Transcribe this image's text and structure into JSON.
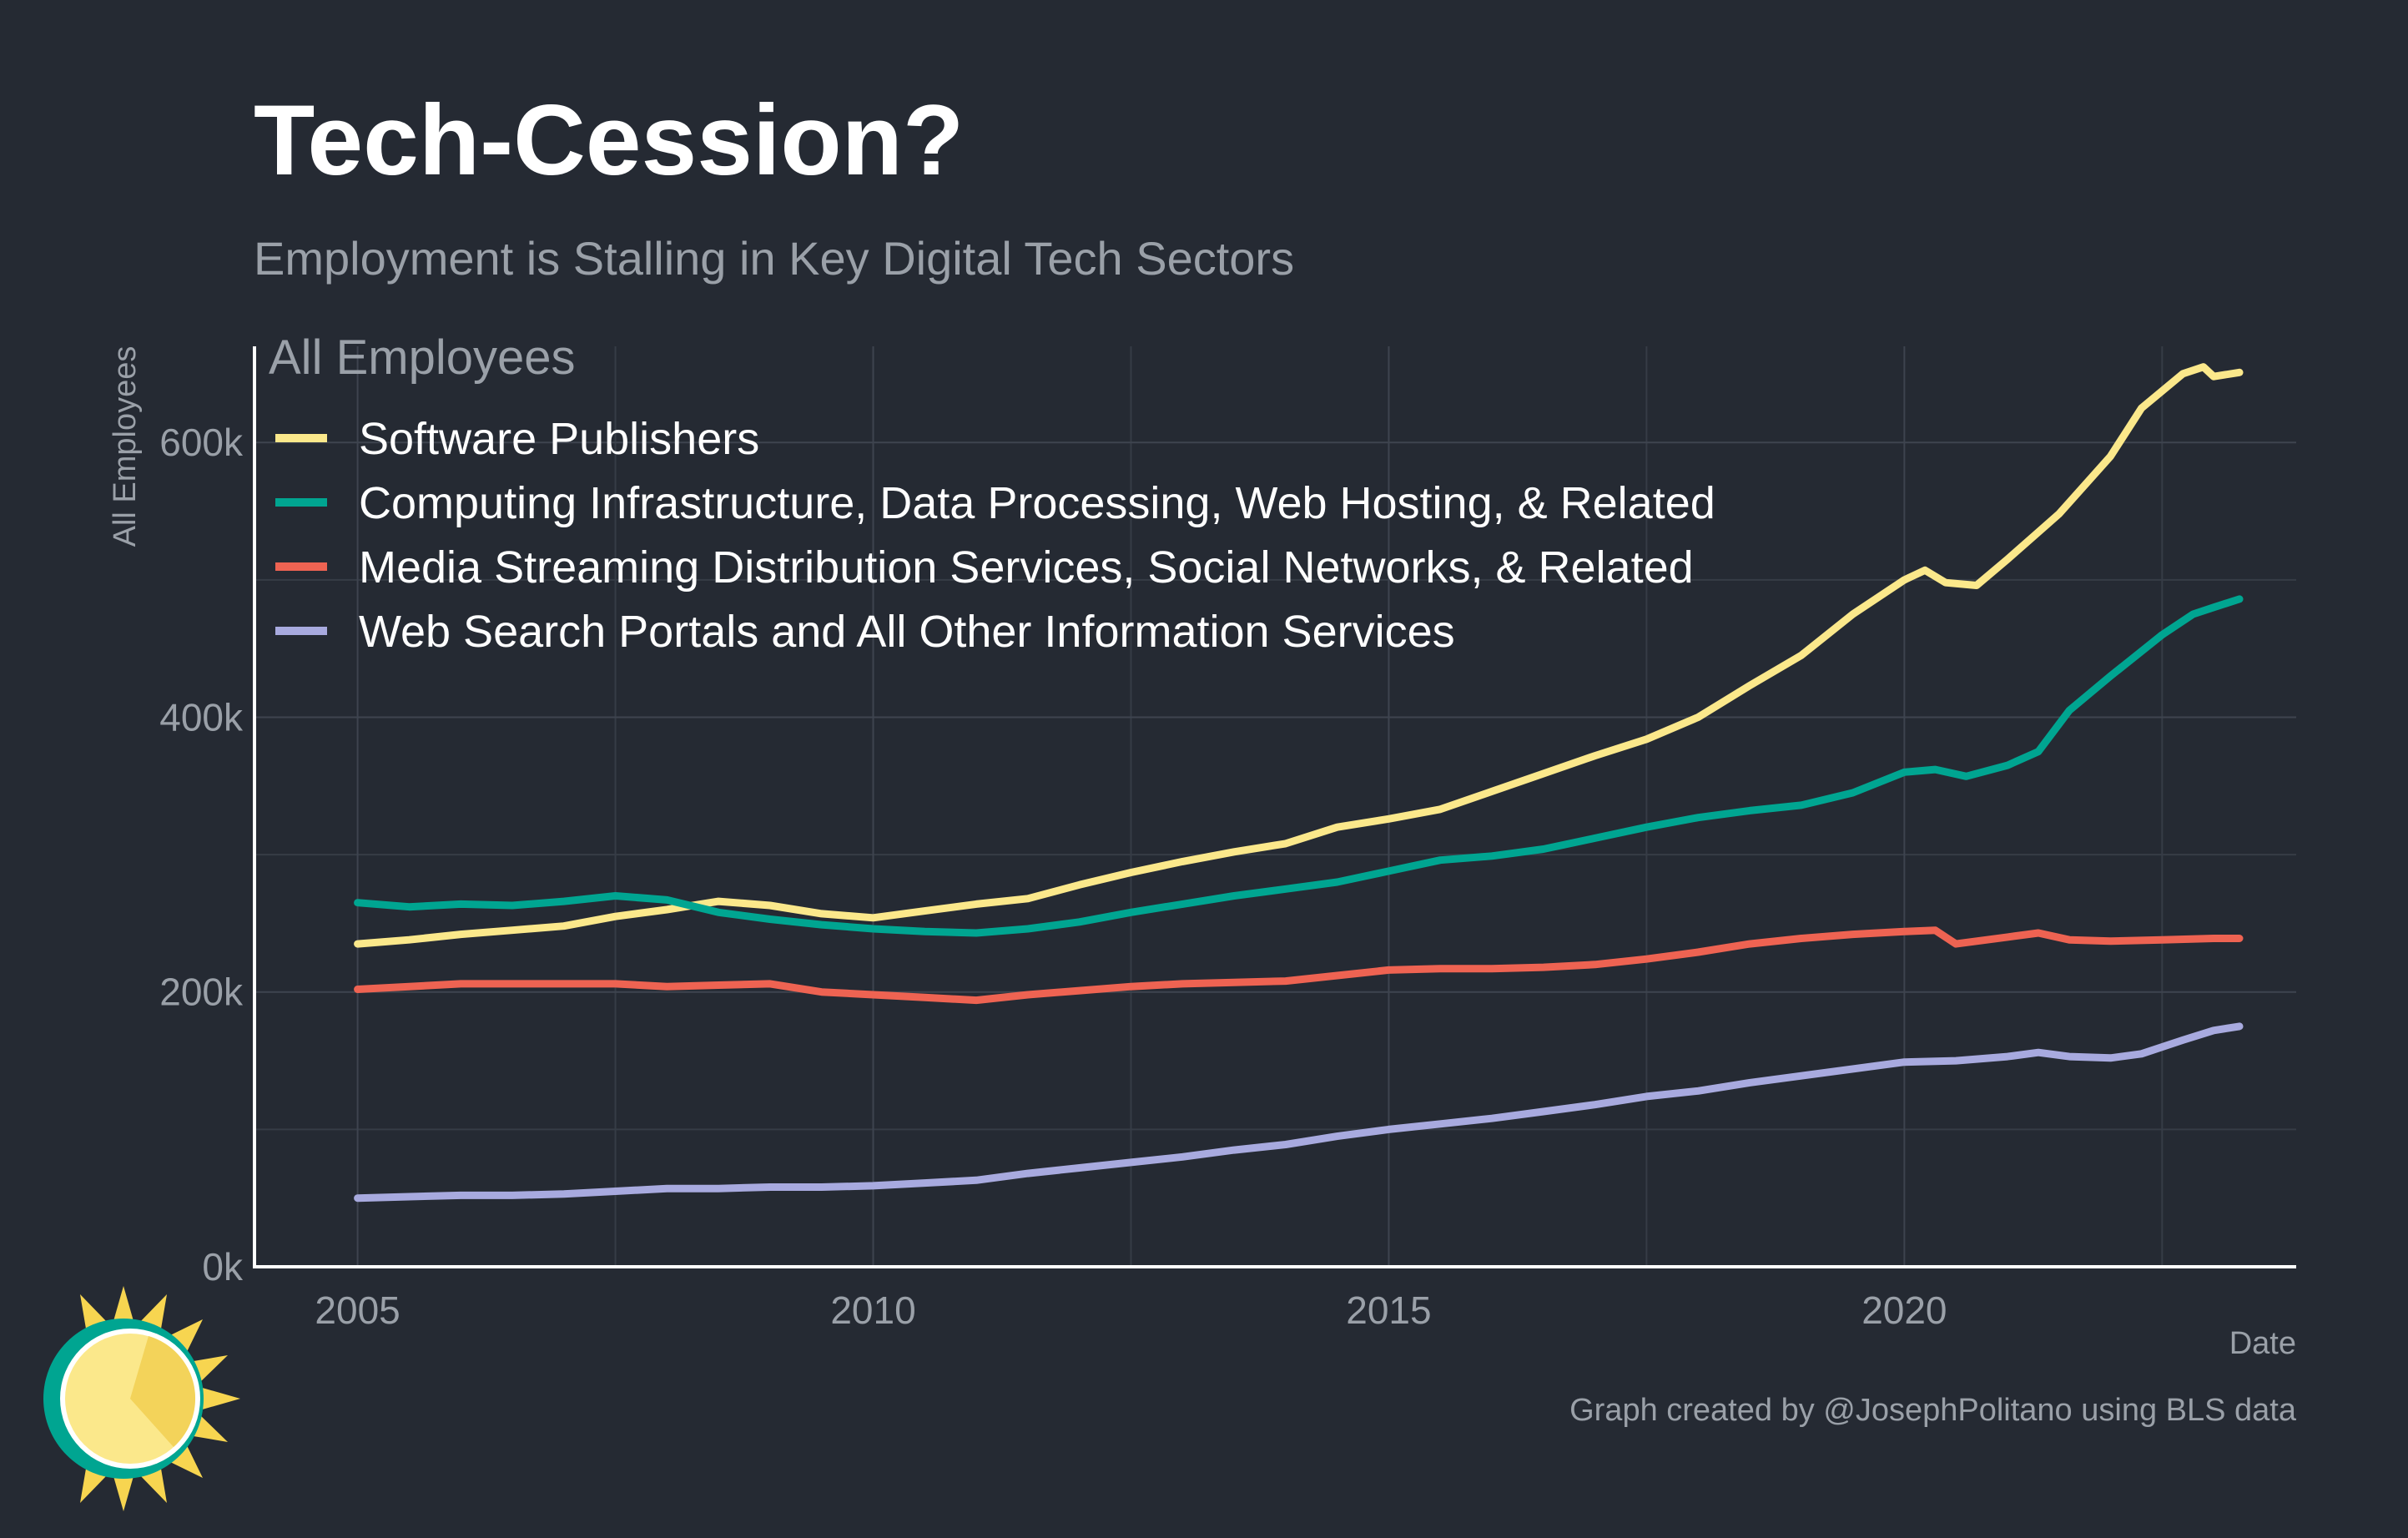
{
  "header": {
    "title": "Tech-Cession?",
    "subtitle": "Employment is Stalling in Key Digital Tech Sectors"
  },
  "footer": {
    "x_axis_title": "Date",
    "caption": "Graph created by @JosephPolitano using BLS data"
  },
  "chart_data": {
    "type": "line",
    "title": "Tech-Cession?",
    "subtitle": "Employment is Stalling in Key Digital Tech Sectors",
    "panel_label": "All Employees",
    "xlabel": "Date",
    "ylabel": "All Employees",
    "xlim": [
      2004.0,
      2023.8
    ],
    "ylim": [
      0,
      670000
    ],
    "x_ticks": [
      2005,
      2010,
      2015,
      2020
    ],
    "x_tick_labels": [
      "2005",
      "2010",
      "2015",
      "2020"
    ],
    "y_ticks": [
      0,
      200000,
      400000,
      600000
    ],
    "y_tick_labels": [
      "0k",
      "200k",
      "400k",
      "600k"
    ],
    "grid": true,
    "legend_position": "top-left",
    "series": [
      {
        "name": "Software Publishers",
        "color": "#fbe88b",
        "points": [
          [
            2005,
            235000
          ],
          [
            2005.5,
            238000
          ],
          [
            2006,
            242000
          ],
          [
            2006.5,
            245000
          ],
          [
            2007,
            248000
          ],
          [
            2007.5,
            255000
          ],
          [
            2008,
            260000
          ],
          [
            2008.5,
            266000
          ],
          [
            2009,
            263000
          ],
          [
            2009.5,
            257000
          ],
          [
            2010,
            254000
          ],
          [
            2010.5,
            259000
          ],
          [
            2011,
            264000
          ],
          [
            2011.5,
            268000
          ],
          [
            2012,
            278000
          ],
          [
            2012.5,
            287000
          ],
          [
            2013,
            295000
          ],
          [
            2013.5,
            302000
          ],
          [
            2014,
            308000
          ],
          [
            2014.5,
            320000
          ],
          [
            2015,
            326000
          ],
          [
            2015.5,
            333000
          ],
          [
            2016,
            346000
          ],
          [
            2016.5,
            359000
          ],
          [
            2017,
            372000
          ],
          [
            2017.5,
            384000
          ],
          [
            2018,
            400000
          ],
          [
            2018.5,
            423000
          ],
          [
            2019,
            445000
          ],
          [
            2019.5,
            475000
          ],
          [
            2020,
            500000
          ],
          [
            2020.2,
            507000
          ],
          [
            2020.4,
            498000
          ],
          [
            2020.7,
            496000
          ],
          [
            2021,
            515000
          ],
          [
            2021.5,
            548000
          ],
          [
            2022,
            590000
          ],
          [
            2022.3,
            625000
          ],
          [
            2022.7,
            650000
          ],
          [
            2022.9,
            655000
          ],
          [
            2023,
            648000
          ],
          [
            2023.25,
            651000
          ]
        ]
      },
      {
        "name": "Computing Infrastructure, Data Processing, Web Hosting, & Related",
        "color": "#00a591",
        "points": [
          [
            2005,
            265000
          ],
          [
            2005.5,
            262000
          ],
          [
            2006,
            264000
          ],
          [
            2006.5,
            263000
          ],
          [
            2007,
            266000
          ],
          [
            2007.5,
            270000
          ],
          [
            2008,
            267000
          ],
          [
            2008.5,
            258000
          ],
          [
            2009,
            253000
          ],
          [
            2009.5,
            249000
          ],
          [
            2010,
            246000
          ],
          [
            2010.5,
            244000
          ],
          [
            2011,
            243000
          ],
          [
            2011.5,
            246000
          ],
          [
            2012,
            251000
          ],
          [
            2012.5,
            258000
          ],
          [
            2013,
            264000
          ],
          [
            2013.5,
            270000
          ],
          [
            2014,
            275000
          ],
          [
            2014.5,
            280000
          ],
          [
            2015,
            288000
          ],
          [
            2015.5,
            296000
          ],
          [
            2016,
            299000
          ],
          [
            2016.5,
            304000
          ],
          [
            2017,
            312000
          ],
          [
            2017.5,
            320000
          ],
          [
            2018,
            327000
          ],
          [
            2018.5,
            332000
          ],
          [
            2019,
            336000
          ],
          [
            2019.5,
            345000
          ],
          [
            2020,
            360000
          ],
          [
            2020.3,
            362000
          ],
          [
            2020.6,
            357000
          ],
          [
            2021,
            365000
          ],
          [
            2021.3,
            375000
          ],
          [
            2021.6,
            405000
          ],
          [
            2022,
            430000
          ],
          [
            2022.5,
            460000
          ],
          [
            2022.8,
            475000
          ],
          [
            2023,
            480000
          ],
          [
            2023.25,
            486000
          ]
        ]
      },
      {
        "name": "Media Streaming Distribution Services, Social Networks, & Related",
        "color": "#ee6352",
        "points": [
          [
            2005,
            202000
          ],
          [
            2005.5,
            204000
          ],
          [
            2006,
            206000
          ],
          [
            2006.5,
            206000
          ],
          [
            2007,
            206000
          ],
          [
            2007.5,
            206000
          ],
          [
            2008,
            204000
          ],
          [
            2008.5,
            205000
          ],
          [
            2009,
            206000
          ],
          [
            2009.5,
            200000
          ],
          [
            2010,
            198000
          ],
          [
            2010.5,
            196000
          ],
          [
            2011,
            194000
          ],
          [
            2011.5,
            198000
          ],
          [
            2012,
            201000
          ],
          [
            2012.5,
            204000
          ],
          [
            2013,
            206000
          ],
          [
            2013.5,
            207000
          ],
          [
            2014,
            208000
          ],
          [
            2014.5,
            212000
          ],
          [
            2015,
            216000
          ],
          [
            2015.5,
            217000
          ],
          [
            2016,
            217000
          ],
          [
            2016.5,
            218000
          ],
          [
            2017,
            220000
          ],
          [
            2017.5,
            224000
          ],
          [
            2018,
            229000
          ],
          [
            2018.5,
            235000
          ],
          [
            2019,
            239000
          ],
          [
            2019.5,
            242000
          ],
          [
            2020,
            244000
          ],
          [
            2020.3,
            245000
          ],
          [
            2020.5,
            235000
          ],
          [
            2021,
            240000
          ],
          [
            2021.3,
            243000
          ],
          [
            2021.6,
            238000
          ],
          [
            2022,
            237000
          ],
          [
            2022.5,
            238000
          ],
          [
            2023,
            239000
          ],
          [
            2023.25,
            239000
          ]
        ]
      },
      {
        "name": "Web Search Portals and All Other Information Services",
        "color": "#a8aadf",
        "points": [
          [
            2005,
            50000
          ],
          [
            2005.5,
            51000
          ],
          [
            2006,
            52000
          ],
          [
            2006.5,
            52000
          ],
          [
            2007,
            53000
          ],
          [
            2007.5,
            55000
          ],
          [
            2008,
            57000
          ],
          [
            2008.5,
            57000
          ],
          [
            2009,
            58000
          ],
          [
            2009.5,
            58000
          ],
          [
            2010,
            59000
          ],
          [
            2010.5,
            61000
          ],
          [
            2011,
            63000
          ],
          [
            2011.5,
            68000
          ],
          [
            2012,
            72000
          ],
          [
            2012.5,
            76000
          ],
          [
            2013,
            80000
          ],
          [
            2013.5,
            85000
          ],
          [
            2014,
            89000
          ],
          [
            2014.5,
            95000
          ],
          [
            2015,
            100000
          ],
          [
            2015.5,
            104000
          ],
          [
            2016,
            108000
          ],
          [
            2016.5,
            113000
          ],
          [
            2017,
            118000
          ],
          [
            2017.5,
            124000
          ],
          [
            2018,
            128000
          ],
          [
            2018.5,
            134000
          ],
          [
            2019,
            139000
          ],
          [
            2019.5,
            144000
          ],
          [
            2020,
            149000
          ],
          [
            2020.5,
            150000
          ],
          [
            2021,
            153000
          ],
          [
            2021.3,
            156000
          ],
          [
            2021.6,
            153000
          ],
          [
            2022,
            152000
          ],
          [
            2022.3,
            155000
          ],
          [
            2022.7,
            165000
          ],
          [
            2023,
            172000
          ],
          [
            2023.25,
            175000
          ]
        ]
      }
    ]
  }
}
